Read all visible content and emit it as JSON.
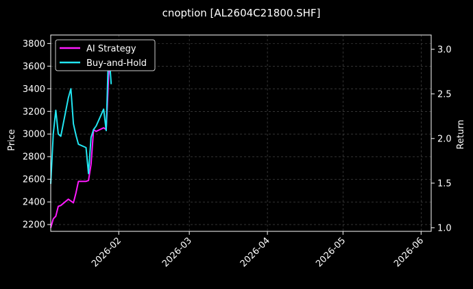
{
  "chart_data": {
    "type": "line",
    "title": "cnoption [AL2604C21800.SHF]",
    "xlabel": "",
    "ylabel_left": "Price",
    "ylabel_right": "Return",
    "x_ticks": [
      "2026-02",
      "2026-03",
      "2026-04",
      "2026-05",
      "2026-06"
    ],
    "x_range": [
      "2026-01-05",
      "2026-06-05"
    ],
    "y_left_range": [
      2140,
      3875
    ],
    "y_left_ticks": [
      2200,
      2400,
      2600,
      2800,
      3000,
      3200,
      3400,
      3600,
      3800
    ],
    "y_right_range": [
      0.96,
      3.16
    ],
    "y_right_ticks": [
      1.0,
      1.5,
      2.0,
      2.5,
      3.0
    ],
    "grid": true,
    "legend_position": "top-left",
    "series": [
      {
        "name": "AI Strategy",
        "axis": "right",
        "color": "#ff1aff",
        "x": [
          "2026-01-05",
          "2026-01-06",
          "2026-01-07",
          "2026-01-08",
          "2026-01-09",
          "2026-01-12",
          "2026-01-13",
          "2026-01-14",
          "2026-01-15",
          "2026-01-16",
          "2026-01-19",
          "2026-01-20",
          "2026-01-21",
          "2026-01-22",
          "2026-01-23",
          "2026-01-26",
          "2026-01-27",
          "2026-01-28",
          "2026-01-29"
        ],
        "y": [
          1.0,
          1.1,
          1.13,
          1.24,
          1.25,
          1.32,
          1.3,
          1.28,
          1.39,
          1.52,
          1.52,
          1.53,
          1.71,
          2.1,
          2.08,
          2.12,
          2.1,
          2.7,
          2.98
        ]
      },
      {
        "name": "Buy-and-Hold",
        "axis": "left",
        "color": "#22e6f2",
        "x": [
          "2026-01-05",
          "2026-01-06",
          "2026-01-07",
          "2026-01-08",
          "2026-01-09",
          "2026-01-12",
          "2026-01-13",
          "2026-01-14",
          "2026-01-15",
          "2026-01-16",
          "2026-01-19",
          "2026-01-20",
          "2026-01-21",
          "2026-01-22",
          "2026-01-23",
          "2026-01-26",
          "2026-01-27",
          "2026-01-28",
          "2026-01-29"
        ],
        "y": [
          2560,
          3000,
          3210,
          3000,
          2980,
          3320,
          3400,
          3090,
          2990,
          2910,
          2880,
          2650,
          2970,
          3040,
          3070,
          3220,
          3030,
          3770,
          3440
        ]
      }
    ]
  }
}
